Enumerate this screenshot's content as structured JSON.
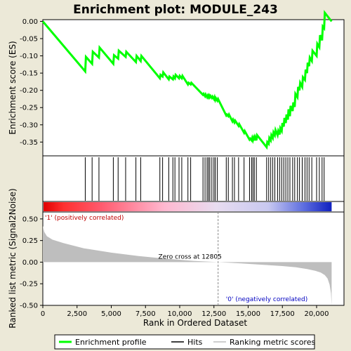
{
  "chart_data": {
    "type": "line",
    "title": "Enrichment plot: MODULE_243",
    "xlabel": "Rank in Ordered Dataset",
    "ylabel_top": "Enrichment score (ES)",
    "ylabel_bottom": "Ranked list metric (Signal2Noise)",
    "x_ticks": [
      0,
      2500,
      5000,
      7500,
      10000,
      12500,
      15000,
      17500,
      20000
    ],
    "x_tick_labels": [
      "0",
      "2,500",
      "5,000",
      "7,500",
      "10,000",
      "12,500",
      "15,000",
      "17,500",
      "20,000"
    ],
    "es_y_ticks": [
      0.0,
      -0.05,
      -0.1,
      -0.15,
      -0.2,
      -0.25,
      -0.3,
      -0.35
    ],
    "es_y_tick_labels": [
      "0.00",
      "-0.05",
      "-0.10",
      "-0.15",
      "-0.20",
      "-0.25",
      "-0.30",
      "-0.35"
    ],
    "metric_y_ticks": [
      0.5,
      0.25,
      0.0,
      -0.25,
      -0.5
    ],
    "metric_y_tick_labels": [
      "0.50",
      "0.25",
      "0.00",
      "-0.25",
      "-0.50"
    ],
    "xlim": [
      0,
      22000
    ],
    "es_ylim": [
      -0.39,
      0.005
    ],
    "metric_ylim": [
      -0.5,
      0.58
    ],
    "zero_cross_label": "Zero cross at 12805",
    "zero_cross_x": 12805,
    "positive_label": "'1' (positively correlated)",
    "negative_label": "'0' (negatively correlated)",
    "n_genes": 21100,
    "series": [
      {
        "name": "Enrichment profile",
        "color": "#00FF00",
        "x": [
          0,
          3100,
          3150,
          3600,
          3650,
          4100,
          4150,
          5150,
          5200,
          5500,
          5550,
          6050,
          6100,
          6800,
          6850,
          7150,
          7200,
          8550,
          8600,
          8750,
          8800,
          9200,
          9250,
          9500,
          9550,
          9650,
          9700,
          9950,
          10000,
          10150,
          10200,
          10600,
          10650,
          10800,
          10850,
          11700,
          11750,
          11850,
          11900,
          12000,
          12050,
          12100,
          12150,
          12200,
          12250,
          12350,
          12400,
          12500,
          12550,
          12600,
          12650,
          12750,
          12800,
          13400,
          13450,
          13550,
          13600,
          13850,
          13900,
          14000,
          14050,
          14300,
          14350,
          14700,
          14750,
          15100,
          15150,
          15250,
          15300,
          15350,
          15400,
          15450,
          15500,
          15600,
          15650,
          16350,
          16400,
          16500,
          16550,
          16650,
          16700,
          16800,
          16850,
          16950,
          17000,
          17150,
          17200,
          17300,
          17350,
          17450,
          17500,
          17600,
          17650,
          17750,
          17800,
          17900,
          17950,
          18050,
          18100,
          18250,
          18300,
          18400,
          18450,
          18600,
          18650,
          18750,
          18800,
          18950,
          19000,
          19150,
          19200,
          19300,
          19350,
          19450,
          19500,
          19650,
          19700,
          20000,
          20050,
          20200,
          20250,
          20400,
          20450,
          20550,
          20600,
          21100
        ],
        "y": [
          0.0,
          -0.145,
          -0.103,
          -0.123,
          -0.088,
          -0.105,
          -0.076,
          -0.123,
          -0.098,
          -0.108,
          -0.085,
          -0.103,
          -0.088,
          -0.118,
          -0.1,
          -0.115,
          -0.1,
          -0.165,
          -0.155,
          -0.16,
          -0.148,
          -0.168,
          -0.16,
          -0.168,
          -0.16,
          -0.165,
          -0.155,
          -0.165,
          -0.158,
          -0.165,
          -0.158,
          -0.183,
          -0.178,
          -0.183,
          -0.178,
          -0.213,
          -0.21,
          -0.217,
          -0.212,
          -0.22,
          -0.215,
          -0.22,
          -0.215,
          -0.22,
          -0.216,
          -0.222,
          -0.218,
          -0.225,
          -0.22,
          -0.228,
          -0.223,
          -0.23,
          -0.225,
          -0.273,
          -0.27,
          -0.275,
          -0.27,
          -0.29,
          -0.285,
          -0.293,
          -0.288,
          -0.303,
          -0.298,
          -0.323,
          -0.318,
          -0.343,
          -0.34,
          -0.345,
          -0.338,
          -0.345,
          -0.338,
          -0.345,
          -0.335,
          -0.345,
          -0.33,
          -0.365,
          -0.35,
          -0.355,
          -0.338,
          -0.345,
          -0.33,
          -0.338,
          -0.322,
          -0.33,
          -0.315,
          -0.33,
          -0.318,
          -0.328,
          -0.31,
          -0.318,
          -0.295,
          -0.305,
          -0.28,
          -0.295,
          -0.27,
          -0.285,
          -0.255,
          -0.275,
          -0.245,
          -0.26,
          -0.235,
          -0.248,
          -0.21,
          -0.22,
          -0.19,
          -0.2,
          -0.178,
          -0.19,
          -0.162,
          -0.17,
          -0.14,
          -0.15,
          -0.12,
          -0.13,
          -0.105,
          -0.115,
          -0.085,
          -0.1,
          -0.065,
          -0.075,
          -0.04,
          -0.055,
          -0.015,
          -0.02,
          0.025,
          0.0
        ]
      }
    ],
    "hits": [
      3100,
      3600,
      4100,
      5150,
      5500,
      6050,
      6800,
      7150,
      8550,
      8750,
      9200,
      9500,
      9650,
      9950,
      10150,
      10600,
      10800,
      11700,
      11850,
      12000,
      12100,
      12200,
      12350,
      12500,
      12600,
      12750,
      13400,
      13550,
      13850,
      14000,
      14300,
      14700,
      15100,
      15250,
      15350,
      15450,
      15600,
      16350,
      16500,
      16650,
      16800,
      16950,
      17150,
      17300,
      17450,
      17600,
      17750,
      17900,
      18050,
      18250,
      18400,
      18600,
      18750,
      18950,
      19150,
      19300,
      19450,
      19650,
      20000,
      20200,
      20400,
      20550
    ],
    "metric_curve": {
      "x": [
        0,
        100,
        300,
        700,
        1500,
        3000,
        5000,
        7000,
        9000,
        11000,
        12805,
        14500,
        16000,
        17500,
        18500,
        19300,
        19900,
        20300,
        20600,
        20800,
        20950,
        21050,
        21100
      ],
      "y": [
        0.42,
        0.35,
        0.3,
        0.26,
        0.22,
        0.16,
        0.11,
        0.07,
        0.04,
        0.015,
        0.0,
        -0.015,
        -0.03,
        -0.045,
        -0.06,
        -0.08,
        -0.1,
        -0.12,
        -0.15,
        -0.19,
        -0.26,
        -0.36,
        -0.5
      ]
    },
    "legend": [
      {
        "label": "Enrichment profile",
        "color": "#00FF00"
      },
      {
        "label": "Hits",
        "color": "#000000"
      },
      {
        "label": "Ranking metric scores",
        "color": "#BEBEBE"
      }
    ],
    "grid": false,
    "legend_position": "bottom"
  }
}
